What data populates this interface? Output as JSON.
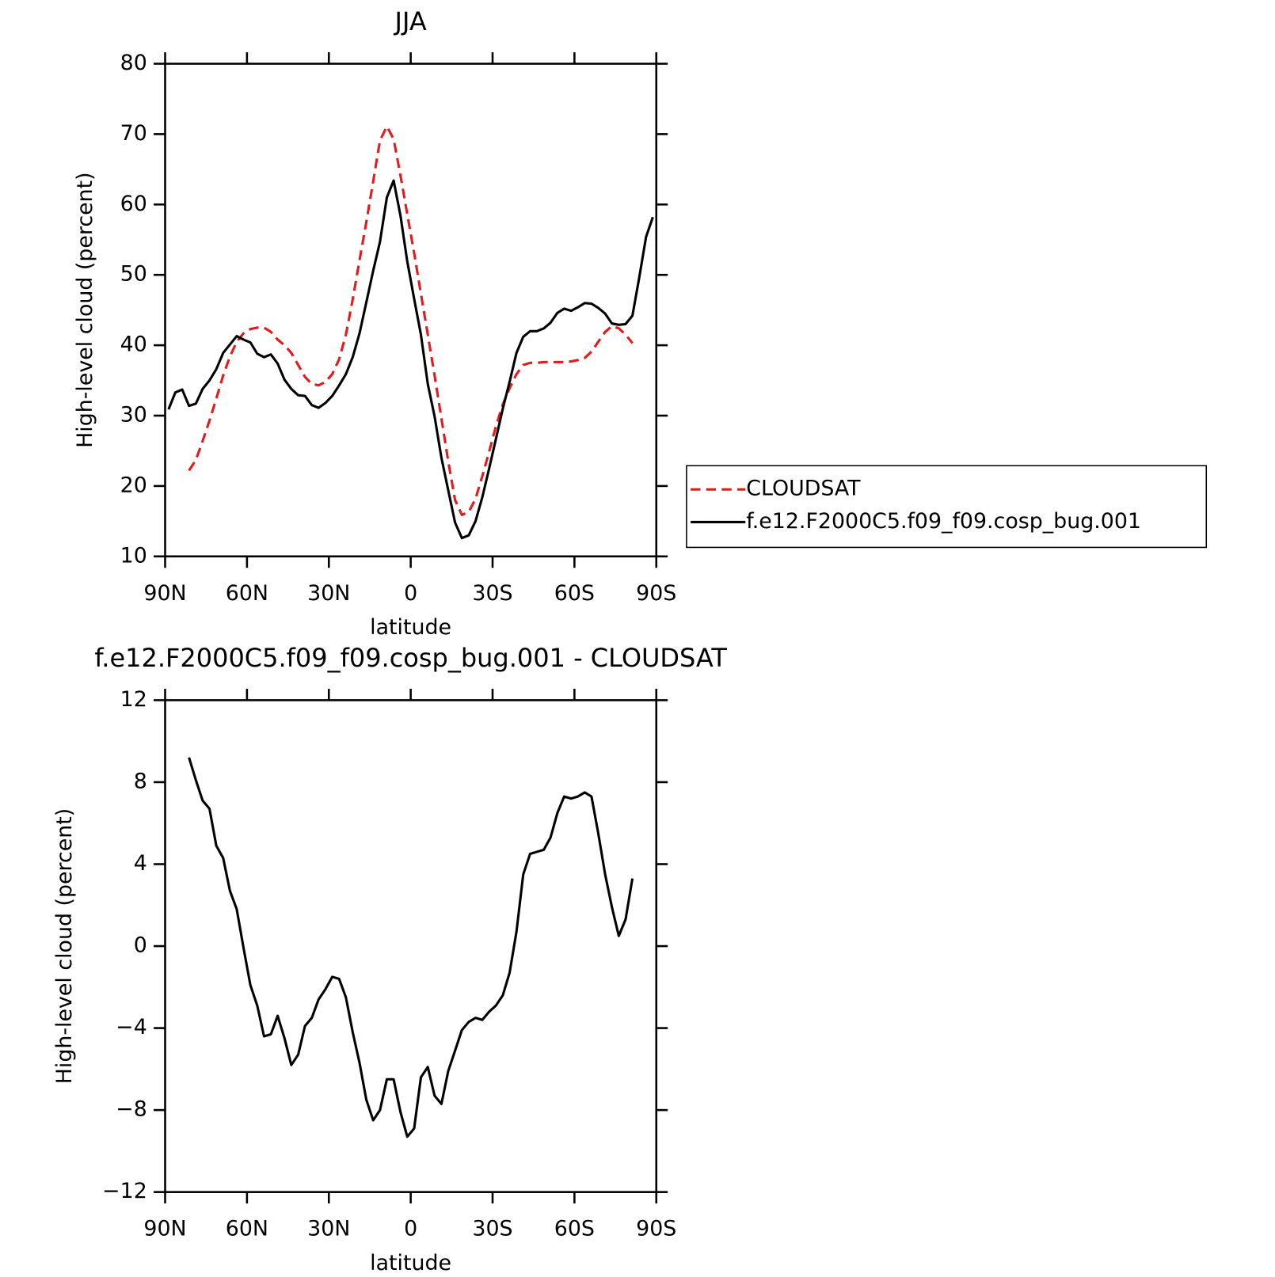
{
  "chart_data": [
    {
      "type": "line",
      "title": "JJA",
      "xlabel": "latitude",
      "ylabel": "High-level cloud (percent)",
      "x": [
        88.75,
        86.25,
        83.75,
        81.25,
        78.75,
        76.25,
        73.75,
        71.25,
        68.75,
        66.25,
        63.75,
        61.25,
        58.75,
        56.25,
        53.75,
        51.25,
        48.75,
        46.25,
        43.75,
        41.25,
        38.75,
        36.25,
        33.75,
        31.25,
        28.75,
        26.25,
        23.75,
        21.25,
        18.75,
        16.25,
        13.75,
        11.25,
        8.75,
        6.25,
        3.75,
        1.25,
        -1.25,
        -3.75,
        -6.25,
        -8.75,
        -11.25,
        -13.75,
        -16.25,
        -18.75,
        -21.25,
        -23.75,
        -26.25,
        -28.75,
        -31.25,
        -33.75,
        -36.25,
        -38.75,
        -41.25,
        -43.75,
        -46.25,
        -48.75,
        -51.25,
        -53.75,
        -56.25,
        -58.75,
        -61.25,
        -63.75,
        -66.25,
        -68.75,
        -71.25,
        -73.75,
        -76.25,
        -78.75,
        -81.25,
        -83.75,
        -86.25,
        -88.75
      ],
      "xlim": [
        90,
        -90
      ],
      "xticks": [
        {
          "value": 90,
          "label": "90N"
        },
        {
          "value": 60,
          "label": "60N"
        },
        {
          "value": 30,
          "label": "30N"
        },
        0,
        {
          "value": -30,
          "label": "30S"
        },
        {
          "value": -60,
          "label": "60S"
        },
        {
          "value": -90,
          "label": "90S"
        }
      ],
      "ylim": [
        10,
        80
      ],
      "yticks": [
        10,
        20,
        30,
        40,
        50,
        60,
        70,
        80
      ],
      "legend": "right",
      "series": [
        {
          "name": "CLOUDSAT",
          "color": "#e41a1c",
          "style": "dashed",
          "values": [
            null,
            null,
            null,
            22.2,
            23.7,
            26.4,
            29.3,
            32.4,
            35.7,
            38.4,
            40.5,
            41.7,
            42.3,
            42.5,
            42.5,
            41.9,
            40.8,
            40.0,
            38.9,
            37.2,
            35.5,
            34.5,
            34.3,
            34.8,
            35.9,
            38.0,
            41.5,
            46.5,
            52.1,
            57.5,
            63.3,
            69.1,
            71.1,
            69.3,
            64.1,
            58.6,
            53.1,
            47.3,
            41.5,
            35.7,
            29.6,
            23.5,
            18.0,
            15.9,
            16.3,
            18.2,
            21.4,
            24.9,
            28.5,
            31.6,
            33.9,
            35.9,
            37.2,
            37.5,
            37.5,
            37.6,
            37.6,
            37.6,
            37.6,
            37.7,
            37.9,
            38.2,
            39.1,
            40.5,
            41.9,
            42.7,
            42.4,
            41.5,
            40.3,
            null,
            null,
            null
          ]
        },
        {
          "name": "f.e12.F2000C5.f09_f09.cosp_bug.001",
          "color": "#000000",
          "style": "solid",
          "values": [
            30.9,
            33.3,
            33.7,
            31.4,
            31.7,
            33.8,
            35.0,
            36.6,
            38.9,
            40.1,
            41.3,
            40.8,
            40.4,
            38.8,
            38.3,
            38.7,
            37.4,
            35.1,
            33.8,
            32.9,
            32.8,
            31.5,
            31.1,
            31.8,
            32.8,
            34.3,
            35.9,
            38.3,
            41.7,
            46.1,
            50.6,
            54.7,
            61.0,
            63.4,
            58.4,
            51.9,
            46.6,
            41.5,
            34.5,
            29.9,
            24.0,
            19.4,
            14.8,
            12.6,
            13.0,
            15.0,
            18.4,
            22.5,
            26.7,
            31.0,
            34.8,
            38.9,
            41.2,
            42.0,
            42.0,
            42.4,
            43.2,
            44.6,
            45.2,
            44.9,
            45.4,
            46.0,
            45.9,
            45.3,
            44.5,
            43.1,
            42.9,
            43.0,
            44.2,
            49.6,
            55.4,
            58.2
          ]
        }
      ]
    },
    {
      "type": "line",
      "title": "f.e12.F2000C5.f09_f09.cosp_bug.001 - CLOUDSAT",
      "xlabel": "latitude",
      "ylabel": "High-level cloud (percent)",
      "x": [
        88.75,
        86.25,
        83.75,
        81.25,
        78.75,
        76.25,
        73.75,
        71.25,
        68.75,
        66.25,
        63.75,
        61.25,
        58.75,
        56.25,
        53.75,
        51.25,
        48.75,
        46.25,
        43.75,
        41.25,
        38.75,
        36.25,
        33.75,
        31.25,
        28.75,
        26.25,
        23.75,
        21.25,
        18.75,
        16.25,
        13.75,
        11.25,
        8.75,
        6.25,
        3.75,
        1.25,
        -1.25,
        -3.75,
        -6.25,
        -8.75,
        -11.25,
        -13.75,
        -16.25,
        -18.75,
        -21.25,
        -23.75,
        -26.25,
        -28.75,
        -31.25,
        -33.75,
        -36.25,
        -38.75,
        -41.25,
        -43.75,
        -46.25,
        -48.75,
        -51.25,
        -53.75,
        -56.25,
        -58.75,
        -61.25,
        -63.75,
        -66.25,
        -68.75,
        -71.25,
        -73.75,
        -76.25,
        -78.75,
        -81.25,
        -83.75,
        -86.25,
        -88.75
      ],
      "xlim": [
        90,
        -90
      ],
      "xticks": [
        {
          "value": 90,
          "label": "90N"
        },
        {
          "value": 60,
          "label": "60N"
        },
        {
          "value": 30,
          "label": "30N"
        },
        0,
        {
          "value": -30,
          "label": "30S"
        },
        {
          "value": -60,
          "label": "60S"
        },
        {
          "value": -90,
          "label": "90S"
        }
      ],
      "ylim": [
        -12,
        12
      ],
      "yticks": [
        {
          "value": -12,
          "label": "−12"
        },
        {
          "value": -8,
          "label": "−8"
        },
        {
          "value": -4,
          "label": "−4"
        },
        0,
        4,
        8,
        12
      ],
      "series": [
        {
          "color": "#000000",
          "style": "solid",
          "values": [
            null,
            null,
            null,
            9.2,
            8.1,
            7.1,
            6.7,
            4.9,
            4.3,
            2.7,
            1.8,
            -0.1,
            -1.9,
            -2.9,
            -4.4,
            -4.3,
            -3.4,
            -4.5,
            -5.8,
            -5.3,
            -3.9,
            -3.5,
            -2.6,
            -2.1,
            -1.5,
            -1.6,
            -2.5,
            -4.2,
            -5.7,
            -7.5,
            -8.5,
            -8.0,
            -6.5,
            -6.5,
            -8.1,
            -9.3,
            -8.9,
            -6.4,
            -5.9,
            -7.3,
            -7.7,
            -6.1,
            -5.1,
            -4.1,
            -3.7,
            -3.5,
            -3.6,
            -3.2,
            -2.9,
            -2.4,
            -1.3,
            0.7,
            3.5,
            4.5,
            4.6,
            4.7,
            5.3,
            6.5,
            7.3,
            7.2,
            7.3,
            7.5,
            7.3,
            5.5,
            3.5,
            1.9,
            0.5,
            1.3,
            3.3,
            null,
            null,
            null
          ]
        }
      ]
    }
  ]
}
